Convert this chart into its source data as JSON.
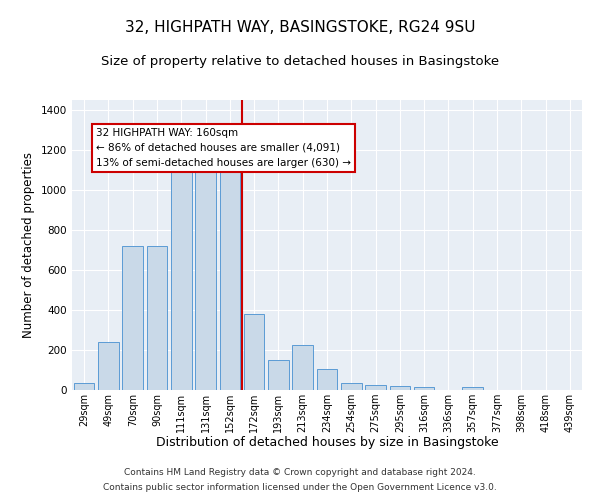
{
  "title": "32, HIGHPATH WAY, BASINGSTOKE, RG24 9SU",
  "subtitle": "Size of property relative to detached houses in Basingstoke",
  "xlabel": "Distribution of detached houses by size in Basingstoke",
  "ylabel": "Number of detached properties",
  "categories": [
    "29sqm",
    "49sqm",
    "70sqm",
    "90sqm",
    "111sqm",
    "131sqm",
    "152sqm",
    "172sqm",
    "193sqm",
    "213sqm",
    "234sqm",
    "254sqm",
    "275sqm",
    "295sqm",
    "316sqm",
    "336sqm",
    "357sqm",
    "377sqm",
    "398sqm",
    "418sqm",
    "439sqm"
  ],
  "values": [
    35,
    240,
    720,
    720,
    1110,
    1120,
    1120,
    380,
    150,
    225,
    105,
    35,
    25,
    20,
    15,
    0,
    15,
    0,
    0,
    0,
    0
  ],
  "bar_color": "#c9d9e8",
  "bar_edge_color": "#5b9bd5",
  "vline_x": 6.5,
  "vline_color": "#cc0000",
  "annotation_text": "32 HIGHPATH WAY: 160sqm\n← 86% of detached houses are smaller (4,091)\n13% of semi-detached houses are larger (630) →",
  "annotation_box_color": "#ffffff",
  "annotation_box_edge": "#cc0000",
  "ylim": [
    0,
    1450
  ],
  "yticks": [
    0,
    200,
    400,
    600,
    800,
    1000,
    1200,
    1400
  ],
  "bg_color": "#e8eef5",
  "grid_color": "#ffffff",
  "footer1": "Contains HM Land Registry data © Crown copyright and database right 2024.",
  "footer2": "Contains public sector information licensed under the Open Government Licence v3.0.",
  "title_fontsize": 11,
  "subtitle_fontsize": 9.5,
  "xlabel_fontsize": 9,
  "ylabel_fontsize": 8.5
}
